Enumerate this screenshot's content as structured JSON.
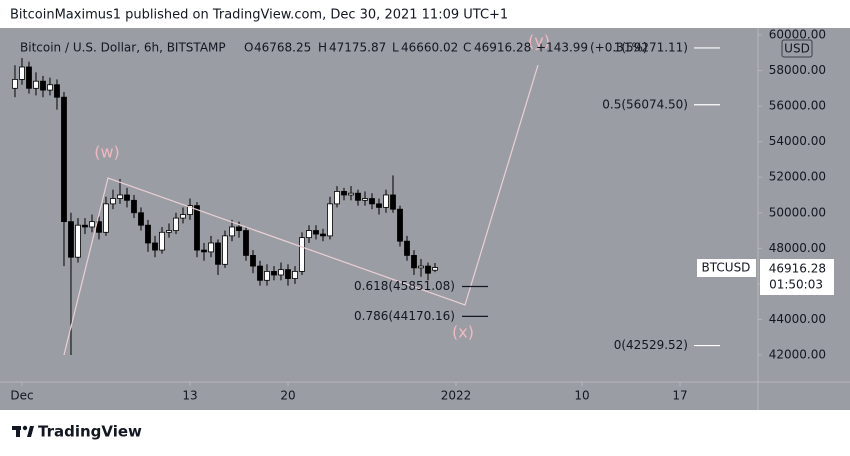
{
  "header": {
    "text": "BitcoinMaximus1 published on TradingView.com, Dec 30, 2021 11:09 UTC+1"
  },
  "chart_data": {
    "type": "candlestick",
    "title": "Bitcoin / U.S. Dollar, 6h, BITSTAMP",
    "ohlc_letters": [
      "O",
      "H",
      "L",
      "C"
    ],
    "change": "+143.99",
    "change_percent": "(+0.31%)",
    "x": [
      0.5,
      1,
      1.5,
      2,
      2.5,
      3,
      3.5,
      4,
      4.5,
      5,
      5.5,
      6,
      6.5,
      7,
      7.5,
      8,
      8.5,
      9,
      9.5,
      10,
      10.5,
      11,
      11.5,
      12,
      12.5,
      13,
      13.5,
      14,
      14.5,
      15,
      15.5,
      16,
      16.5,
      17,
      17.5,
      18,
      18.5,
      19,
      19.5,
      20,
      20.5,
      21,
      21.5,
      22,
      22.5,
      23,
      23.5,
      24,
      24.5,
      25,
      25.5,
      26,
      26.5,
      27,
      27.5,
      28,
      28.5,
      29,
      29.5,
      30,
      30.5
    ],
    "open": [
      57000,
      57500,
      58200,
      57000,
      57400,
      56900,
      57200,
      56500,
      49500,
      47500,
      49300,
      49200,
      49500,
      48900,
      50500,
      50800,
      51000,
      50700,
      50000,
      49300,
      48300,
      47900,
      48900,
      49000,
      49700,
      49900,
      50400,
      47900,
      47800,
      48300,
      47100,
      48700,
      49200,
      49000,
      47600,
      47000,
      46200,
      46700,
      46500,
      46800,
      46300,
      46700,
      48600,
      49000,
      48800,
      48700,
      50500,
      51200,
      51000,
      51100,
      50700,
      50800,
      50500,
      50300,
      51000,
      50200,
      48400,
      47600,
      46900,
      47000,
      46768.25
    ],
    "high": [
      58300,
      58700,
      58500,
      57900,
      57700,
      57600,
      57500,
      56800,
      50000,
      49700,
      49700,
      49900,
      49800,
      50900,
      51300,
      51900,
      51400,
      51000,
      50300,
      49600,
      48700,
      49200,
      49400,
      50000,
      50300,
      50800,
      50600,
      48300,
      48700,
      48500,
      49000,
      49600,
      49500,
      49200,
      47900,
      47300,
      47100,
      47000,
      47200,
      47100,
      47000,
      48900,
      49300,
      49300,
      49100,
      50900,
      51500,
      51400,
      51500,
      51300,
      51200,
      51100,
      50800,
      51300,
      52100,
      50400,
      48700,
      47900,
      47400,
      47200,
      47175.87
    ],
    "low": [
      56500,
      57200,
      56700,
      56600,
      56500,
      56600,
      55800,
      47000,
      42000,
      47200,
      48800,
      48900,
      48500,
      48700,
      50200,
      50500,
      50300,
      49700,
      49000,
      47800,
      47500,
      47700,
      48600,
      48800,
      49400,
      49600,
      47500,
      47300,
      47500,
      46500,
      46900,
      48400,
      48600,
      47300,
      46600,
      45900,
      45900,
      46200,
      46200,
      45900,
      46000,
      46500,
      48300,
      48500,
      48400,
      48500,
      50300,
      50700,
      50700,
      50400,
      50400,
      50200,
      49900,
      50000,
      50000,
      48100,
      47300,
      46500,
      46400,
      46200,
      46660.02
    ],
    "close": [
      57500,
      58200,
      57000,
      57400,
      56900,
      57200,
      56500,
      49500,
      47500,
      49300,
      49200,
      49500,
      48900,
      50500,
      50800,
      51000,
      50700,
      50000,
      49300,
      48300,
      47900,
      48900,
      49000,
      49700,
      49900,
      50400,
      47900,
      47800,
      48300,
      47100,
      48700,
      49200,
      49000,
      47600,
      47000,
      46200,
      46700,
      46500,
      46800,
      46300,
      46700,
      48600,
      49000,
      48800,
      48700,
      50500,
      51200,
      51000,
      51100,
      50700,
      50800,
      50500,
      50300,
      51000,
      50200,
      48400,
      47600,
      46900,
      47000,
      46600,
      46916.28
    ],
    "up_color": "#ffffff",
    "down_color": "#000000",
    "wick_color": "#000000",
    "xlim": [
      -0.57,
      53.57
    ],
    "xticks": [
      {
        "value": 1,
        "label": "Dec"
      },
      13,
      20,
      {
        "value": 32,
        "label": "2022"
      },
      {
        "value": 41,
        "label": "10"
      },
      {
        "value": 48,
        "label": "17"
      }
    ],
    "ylim": [
      40480,
      60280
    ],
    "yticks": [
      {
        "value": 42000,
        "label": "42000.00"
      },
      {
        "value": 44000,
        "label": "44000.00"
      },
      {
        "value": 46000,
        "label": "46000.00"
      },
      {
        "value": 48000,
        "label": "48000.00"
      },
      {
        "value": 50000,
        "label": "50000.00"
      },
      {
        "value": 52000,
        "label": "52000.00"
      },
      {
        "value": 54000,
        "label": "54000.00"
      },
      {
        "value": 56000,
        "label": "56000.00"
      },
      {
        "value": 58000,
        "label": "58000.00"
      },
      {
        "value": 60000,
        "label": "60000.00"
      }
    ],
    "currency": "USD",
    "symbol": "BTCUSD",
    "countdown": "01:50:03",
    "fib_levels": [
      {
        "value": 59271.11,
        "label": "1(59271.11)"
      },
      {
        "value": 56074.5,
        "label": "0.5(56074.50)"
      },
      {
        "value": 45851.08,
        "label": "0.618(45851.08)"
      },
      {
        "value": 44170.16,
        "label": "0.786(44170.16)"
      },
      {
        "value": 42529.52,
        "label": "0(42529.52)"
      }
    ],
    "wave_labels": [
      "(w)",
      "(x)",
      "(y)"
    ]
  },
  "footer": {
    "brand": "TradingView"
  }
}
